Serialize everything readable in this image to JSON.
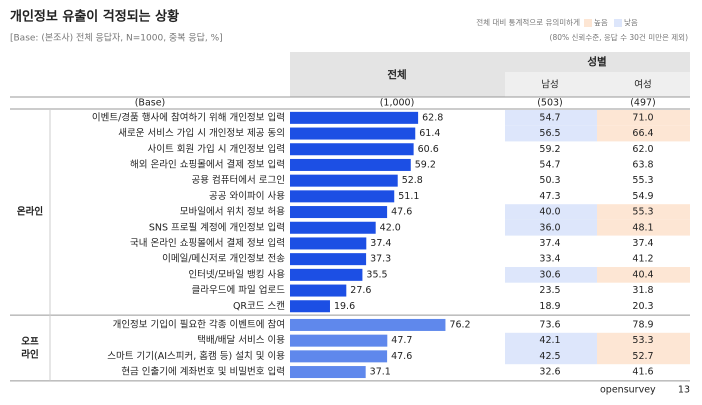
{
  "header": {
    "title": "개인정보 유출이 걱정되는 상황",
    "subtitle": "[Base: (본조사) 전체 응답자, N=1000, 중복 응답, %]",
    "legend_note": "전체 대비 통계적으로 유의미하게",
    "legend_high": "높음",
    "legend_low": "낮음",
    "note": "(80% 신뢰수준, 응답 수 30건 미만은 제외)"
  },
  "chart_data": {
    "type": "bar",
    "orientation": "horizontal",
    "categories": [
      "이벤트/경품 행사에 참여하기 위해 개인정보 입력",
      "새로운 서비스 가입 시 개인정보 제공 동의",
      "사이트 회원 가입 시 개인정보 입력",
      "해외 온라인 쇼핑몰에서 결제 정보 입력",
      "공용 컴퓨터에서 로그인",
      "공공 와이파이 사용",
      "모바일에서 위치 정보 허용",
      "SNS 프로필 계정에 개인정보 입력",
      "국내 온라인 쇼핑몰에서 결제 정보 입력",
      "이메일/메신저로 개인정보 전송",
      "인터넷/모바일 뱅킹 사용",
      "클라우드에 파일 업로드",
      "QR코드 스캔",
      "개인정보 기입이 필요한 각종 이벤트에 참여",
      "택배/배달 서비스 이용",
      "스마트 기기(AI스피커, 홈캠 등) 설치 및 이용",
      "현금 인출기에 계좌번호 및 비밀번호 입력"
    ],
    "values": [
      62.8,
      61.4,
      60.6,
      59.2,
      52.8,
      51.1,
      47.6,
      42,
      37.4,
      37.3,
      35.5,
      27.6,
      19.6,
      76.2,
      47.7,
      47.6,
      37.1
    ],
    "value_labels": [
      "62.8",
      "61.4",
      "60.6",
      "59.2",
      "52.8",
      "51.1",
      "47.6",
      "42.0",
      "37.4",
      "37.3",
      "35.5",
      "27.6",
      "19.6",
      "76.2",
      "47.7",
      "47.6",
      "37.1"
    ],
    "colors": [
      "#1c4fe4",
      "#1c4fe4",
      "#1c4fe4",
      "#1c4fe4",
      "#1c4fe4",
      "#1c4fe4",
      "#1c4fe4",
      "#1c4fe4",
      "#1c4fe4",
      "#1c4fe4",
      "#1c4fe4",
      "#1c4fe4",
      "#1c4fe4",
      "#5f88ec",
      "#5f88ec",
      "#5f88ec",
      "#5f88ec"
    ],
    "xlim": [
      0,
      100
    ]
  },
  "table": {
    "col_total": "전체",
    "col_group": "성별",
    "col_male": "남성",
    "col_female": "여성",
    "base_label": "(Base)",
    "base_total": "(1,000)",
    "base_male": "(503)",
    "base_female": "(497)",
    "groups": [
      {
        "label": [
          "온라인"
        ],
        "rows": 13
      },
      {
        "label": [
          "오프",
          "라인"
        ],
        "rows": 4
      }
    ],
    "male": [
      "54.7",
      "56.5",
      "59.2",
      "54.7",
      "50.3",
      "47.3",
      "40.0",
      "36.0",
      "37.4",
      "33.4",
      "30.6",
      "23.5",
      "18.9",
      "73.6",
      "42.1",
      "42.5",
      "32.6"
    ],
    "female": [
      "71.0",
      "66.4",
      "62.0",
      "63.8",
      "55.3",
      "54.9",
      "55.3",
      "48.1",
      "37.4",
      "41.2",
      "40.4",
      "31.8",
      "20.3",
      "78.9",
      "53.3",
      "52.7",
      "41.6"
    ],
    "male_highlight": [
      "low",
      "low",
      null,
      null,
      null,
      null,
      "low",
      "low",
      null,
      null,
      "low",
      null,
      null,
      null,
      "low",
      "low",
      null
    ],
    "female_highlight": [
      "high",
      "high",
      null,
      null,
      null,
      null,
      "high",
      "high",
      null,
      null,
      "high",
      null,
      null,
      null,
      "high",
      "high",
      null
    ],
    "highlight_colors": {
      "high": "#fde6d4",
      "low": "#dde6fb"
    }
  },
  "footer": {
    "brand": "opensurvey",
    "page": 13
  }
}
